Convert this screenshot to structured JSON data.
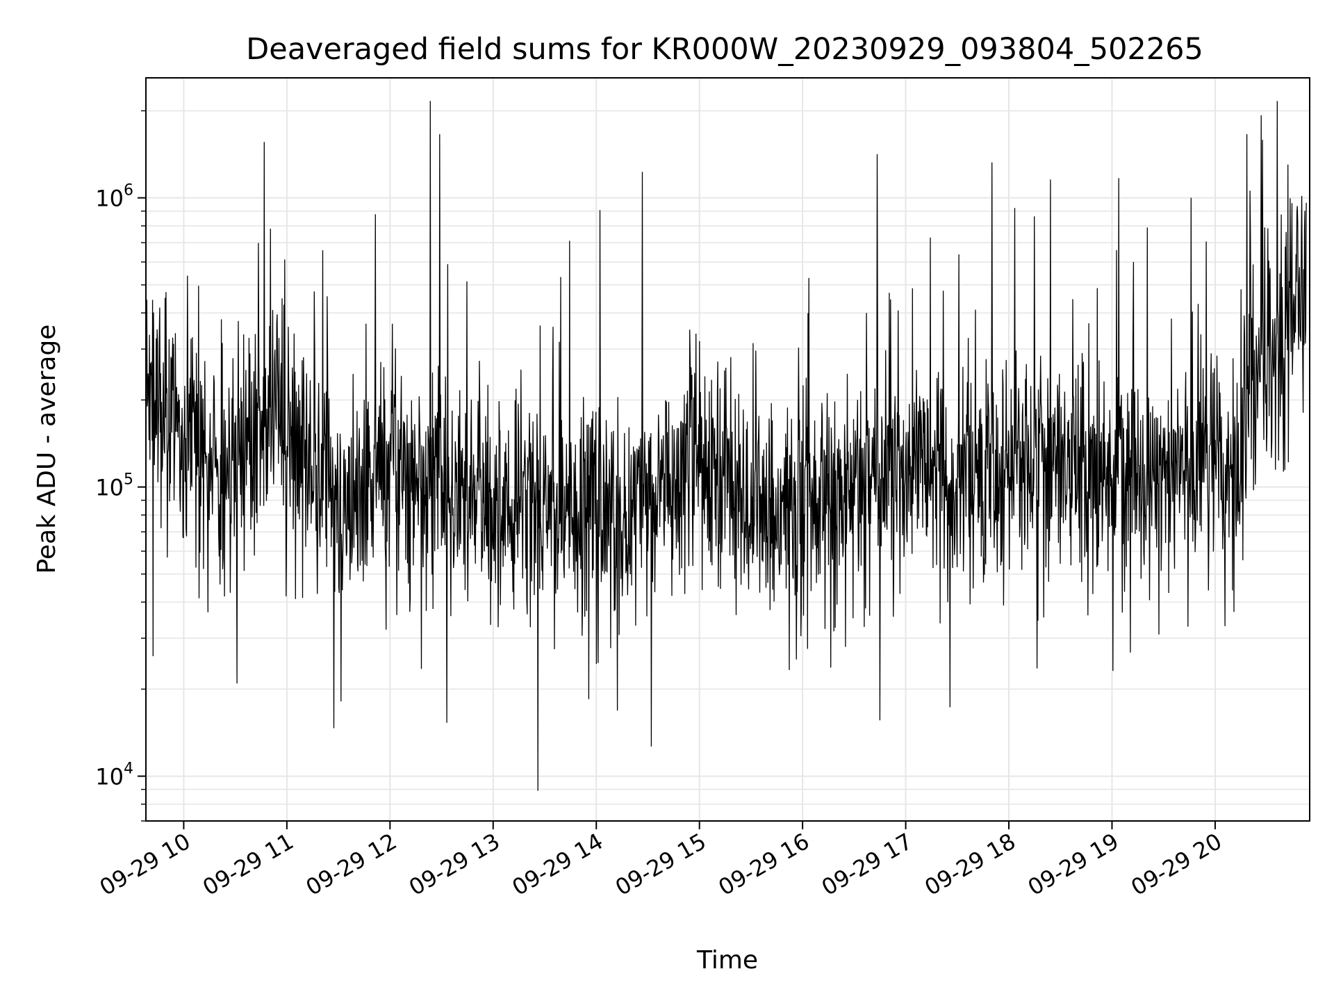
{
  "chart_data": {
    "type": "line",
    "title": "Deaveraged field sums for KR000W_20230929_093804_502265",
    "xlabel": "Time",
    "ylabel": "Peak ADU - average",
    "yscale": "log",
    "ylim": [
      7000,
      2600000
    ],
    "xlim": [
      "2023-09-29 09:38",
      "2023-09-29 20:55"
    ],
    "grid": true,
    "line_color": "#000000",
    "grid_color": "#e6e6e6",
    "x_ticks": [
      {
        "value": "2023-09-29 10:00",
        "label": "09-29 10"
      },
      {
        "value": "2023-09-29 11:00",
        "label": "09-29 11"
      },
      {
        "value": "2023-09-29 12:00",
        "label": "09-29 12"
      },
      {
        "value": "2023-09-29 13:00",
        "label": "09-29 13"
      },
      {
        "value": "2023-09-29 14:00",
        "label": "09-29 14"
      },
      {
        "value": "2023-09-29 15:00",
        "label": "09-29 15"
      },
      {
        "value": "2023-09-29 16:00",
        "label": "09-29 16"
      },
      {
        "value": "2023-09-29 17:00",
        "label": "09-29 17"
      },
      {
        "value": "2023-09-29 18:00",
        "label": "09-29 18"
      },
      {
        "value": "2023-09-29 19:00",
        "label": "09-29 19"
      },
      {
        "value": "2023-09-29 20:00",
        "label": "09-29 20"
      }
    ],
    "y_ticks": [
      {
        "value": 10000,
        "base": "10",
        "exp": "4"
      },
      {
        "value": 100000,
        "base": "10",
        "exp": "5"
      },
      {
        "value": 1000000,
        "base": "10",
        "exp": "6"
      }
    ],
    "series": [
      {
        "x": [
          "2023-09-29 09:38",
          "2023-09-29 09:53",
          "2023-09-29 10:08",
          "2023-09-29 10:23",
          "2023-09-29 10:38",
          "2023-09-29 10:53",
          "2023-09-29 11:08",
          "2023-09-29 11:23",
          "2023-09-29 11:38",
          "2023-09-29 11:53",
          "2023-09-29 12:08",
          "2023-09-29 12:23",
          "2023-09-29 12:38",
          "2023-09-29 12:53",
          "2023-09-29 13:08",
          "2023-09-29 13:23",
          "2023-09-29 13:38",
          "2023-09-29 13:53",
          "2023-09-29 14:08",
          "2023-09-29 14:23",
          "2023-09-29 14:38",
          "2023-09-29 14:53",
          "2023-09-29 15:08",
          "2023-09-29 15:23",
          "2023-09-29 15:38",
          "2023-09-29 15:53",
          "2023-09-29 16:08",
          "2023-09-29 16:23",
          "2023-09-29 16:38",
          "2023-09-29 16:53",
          "2023-09-29 17:08",
          "2023-09-29 17:23",
          "2023-09-29 17:38",
          "2023-09-29 17:53",
          "2023-09-29 18:08",
          "2023-09-29 18:23",
          "2023-09-29 18:38",
          "2023-09-29 18:53",
          "2023-09-29 19:08",
          "2023-09-29 19:23",
          "2023-09-29 19:38",
          "2023-09-29 19:53",
          "2023-09-29 20:08",
          "2023-09-29 20:23",
          "2023-09-29 20:38",
          "2023-09-29 20:53"
        ],
        "y": [
          210000,
          180000,
          140000,
          110000,
          150000,
          200000,
          130000,
          110000,
          85000,
          110000,
          120000,
          100000,
          95000,
          85000,
          80000,
          85000,
          70000,
          75000,
          75000,
          90000,
          100000,
          150000,
          110000,
          90000,
          85000,
          90000,
          95000,
          100000,
          110000,
          110000,
          120000,
          115000,
          100000,
          110000,
          110000,
          115000,
          110000,
          110000,
          105000,
          115000,
          120000,
          125000,
          100000,
          250000,
          350000,
          500000
        ]
      }
    ]
  }
}
